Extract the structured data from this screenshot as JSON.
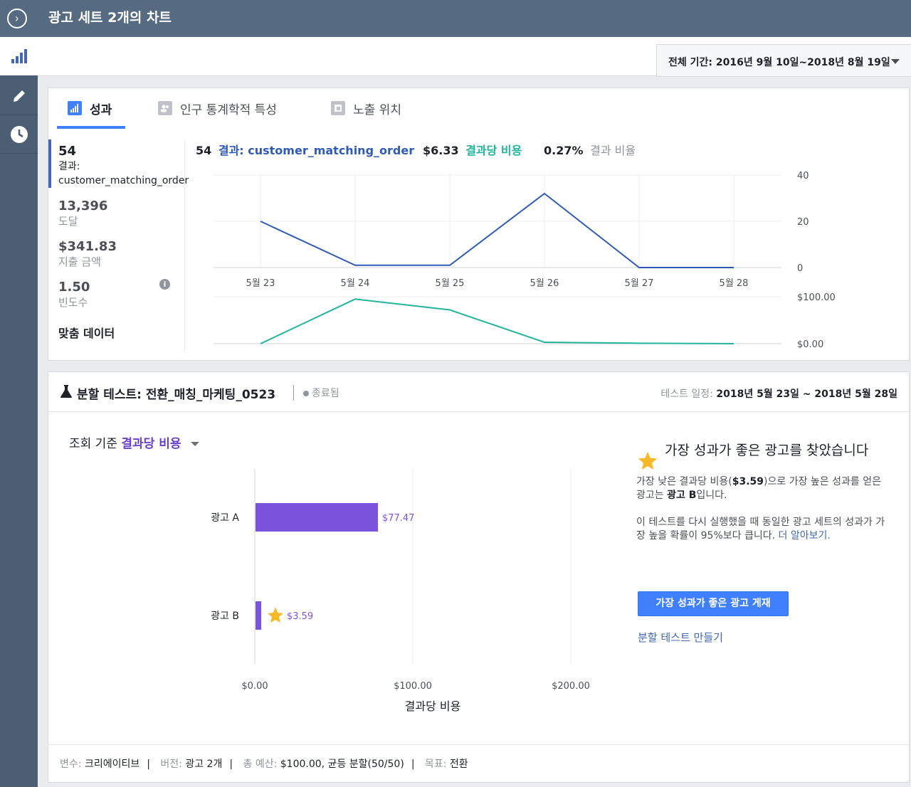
{
  "header": {
    "title": "광고 세트 2개의 차트",
    "toggle_icon": "chevron-right-circle-icon"
  },
  "sidebar": {
    "items": [
      {
        "icon": "bar-chart-icon",
        "active": true
      },
      {
        "icon": "pencil-icon",
        "active": false
      },
      {
        "icon": "clock-icon",
        "active": false
      }
    ]
  },
  "date_range": {
    "label": "전체 기간: 2016년 9월 10일~2018년 8월 19일"
  },
  "tabs": [
    {
      "label": "성과",
      "icon": "bar-chart-icon",
      "active": true
    },
    {
      "label": "인구 통계학적 특성",
      "icon": "people-icon",
      "active": false
    },
    {
      "label": "노출 위치",
      "icon": "placement-icon",
      "active": false
    }
  ],
  "metrics": [
    {
      "value": "54",
      "label": "결과:",
      "sub": "customer_matching_order"
    },
    {
      "value": "13,396",
      "label": "도달"
    },
    {
      "value": "$341.83",
      "label": "지출 금액"
    },
    {
      "value": "1.50",
      "label": "빈도수",
      "info_icon": "info-icon"
    },
    {
      "label": "맞춤 데이터"
    }
  ],
  "summary": {
    "results_value": "54",
    "results_label": "결과: customer_matching_order",
    "cpr_value": "$6.33",
    "cpr_label": "결과당 비용",
    "rate_value": "0.27%",
    "rate_label": "결과 비율"
  },
  "colors": {
    "results": "#2f5bb7",
    "cpr": "#21b59b",
    "rate": "#90949c",
    "bar": "#7b52dc",
    "star": "#f7b928",
    "primary": "#4080ff"
  },
  "split_test": {
    "title": "분할 테스트: 전환_매칭_마케팅_0523",
    "status": "종료됨",
    "schedule_label": "테스트 일정:",
    "schedule_value": "2018년 5월 23일 ~ 2018년 5월 28일",
    "view_by_label": "조회 기준",
    "view_by_value": "결과당 비용",
    "winner": {
      "title": "가장 성과가 좋은 광고를 찾았습니다",
      "p1_a": "가장 낮은 결과당 비용(",
      "p1_b": "$3.59",
      "p1_c": ")으로 가장 높은 성과를 얻은 광고는 ",
      "p1_d": "광고 B",
      "p1_e": "입니다.",
      "p2": "이 테스트를 다시 실행했을 때 동일한 광고 세트의 성과가 가장 높을 확률이 95%보다 큽니다. ",
      "learn_more": "더 알아보기.",
      "promote_button": "가장 성과가 좋은 광고 게재",
      "create_link": "분할 테스트 만들기"
    },
    "footer": {
      "variable_label": "변수:",
      "variable_value": "크리에이티브",
      "version_label": "버전:",
      "version_value": "광고 2개",
      "budget_label": "총 예산:",
      "budget_value": "$100.00, 균등 분할(50/50)",
      "goal_label": "목표:",
      "goal_value": "전환"
    }
  },
  "chart_data": [
    {
      "type": "line",
      "x": [
        "5월 23",
        "5월 24",
        "5월 25",
        "5월 26",
        "5월 27",
        "5월 28"
      ],
      "series": [
        {
          "name": "결과: customer_matching_order",
          "values": [
            20,
            1,
            1,
            32,
            0,
            0
          ]
        }
      ],
      "ylim": [
        0,
        40
      ],
      "y_ticks": [
        "40",
        "20",
        "0"
      ],
      "grid": true
    },
    {
      "type": "line",
      "x": [
        "5월 23",
        "5월 24",
        "5월 25",
        "5월 26",
        "5월 27",
        "5월 28"
      ],
      "series": [
        {
          "name": "결과당 비용",
          "values": [
            0,
            95,
            72,
            3,
            1,
            0
          ]
        }
      ],
      "ylim": [
        0,
        100
      ],
      "y_ticks": [
        "$100.00",
        "$0.00"
      ]
    },
    {
      "type": "bar",
      "orientation": "horizontal",
      "categories": [
        "광고 A",
        "광고 B"
      ],
      "values": [
        77.47,
        3.59
      ],
      "value_labels": [
        "$77.47",
        "$3.59"
      ],
      "winner": "광고 B",
      "xlim": [
        0,
        200
      ],
      "x_ticks": [
        "$0.00",
        "$100.00",
        "$200.00"
      ],
      "xlabel": "결과당 비용"
    }
  ]
}
